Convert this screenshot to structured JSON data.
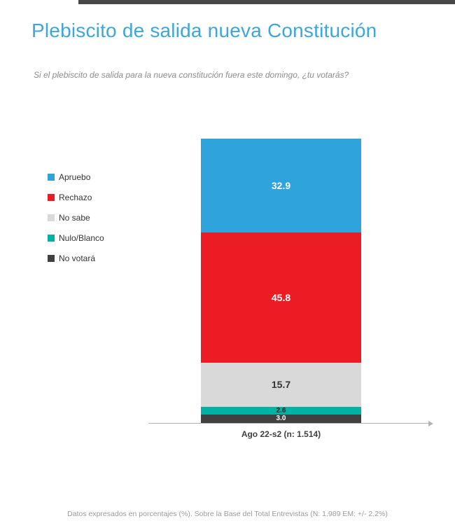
{
  "header": {
    "title": "Plebiscito de salida nueva Constitución",
    "question": "Si el plebiscito de salida para la nueva constitución fuera este domingo, ¿tu votarás?"
  },
  "footer": {
    "note": "Datos expresados en porcentajes (%). Sobre la Base del Total Entrevistas (N: 1.989  EM: +/- 2.2%)"
  },
  "colors": {
    "title_blue": "#3EA6DA",
    "axis_gray": "#B3B3B3",
    "top_strip": "#474747"
  },
  "chart_data": {
    "type": "bar",
    "stacked": true,
    "title": "Plebiscito de salida nueva Constitución",
    "xlabel": "",
    "ylabel": "",
    "ylim": [
      0,
      100
    ],
    "grid": false,
    "legend_position": "left",
    "categories": [
      "Ago 22-s2 (n: 1.514)"
    ],
    "series": [
      {
        "name": "Apruebo",
        "values": [
          32.9
        ],
        "color": "#2EA3DC",
        "label_color": "#FFFFFF"
      },
      {
        "name": "Rechazo",
        "values": [
          45.8
        ],
        "color": "#EC1C24",
        "label_color": "#FFFFFF"
      },
      {
        "name": "No sabe",
        "values": [
          15.7
        ],
        "color": "#D9D9D9",
        "label_color": "#333333"
      },
      {
        "name": "Nulo/Blanco",
        "values": [
          2.6
        ],
        "color": "#00B2A2",
        "label_color": "#1F1F1F"
      },
      {
        "name": "No votará",
        "values": [
          3.0
        ],
        "color": "#404040",
        "label_color": "#FFFFFF"
      }
    ]
  }
}
